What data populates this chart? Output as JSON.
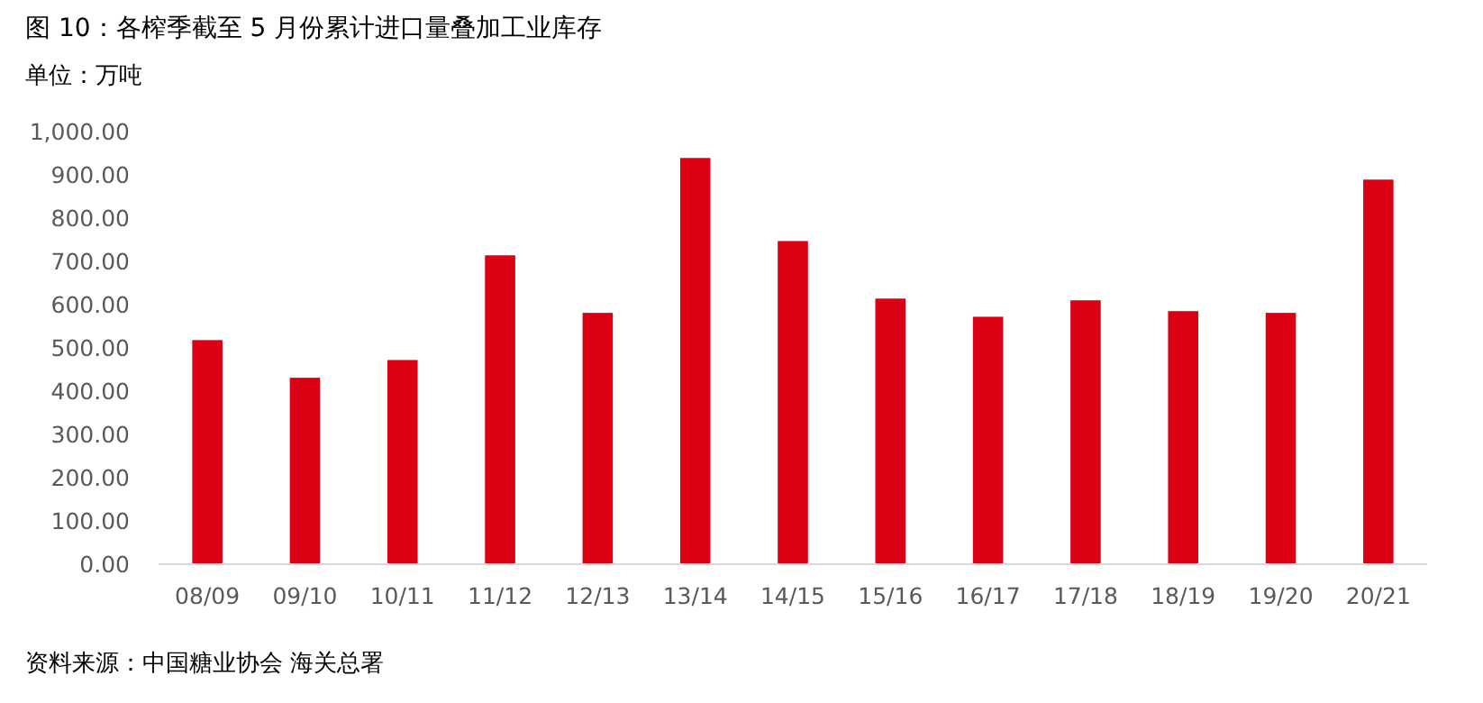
{
  "chart_data": {
    "type": "bar",
    "title": "图 10：各榨季截至 5 月份累计进口量叠加工业库存",
    "subtitle": "单位：万吨",
    "categories": [
      "08/09",
      "09/10",
      "10/11",
      "11/12",
      "12/13",
      "13/14",
      "14/15",
      "15/16",
      "16/17",
      "17/18",
      "18/19",
      "19/20",
      "20/21"
    ],
    "values": [
      518,
      431,
      472,
      714,
      581,
      939,
      747,
      614,
      572,
      610,
      585,
      581,
      889
    ],
    "color": "#dc0014",
    "ylim": [
      0,
      1000
    ],
    "yticks": [
      {
        "value": 0,
        "label": "0.00"
      },
      {
        "value": 100,
        "label": "100.00"
      },
      {
        "value": 200,
        "label": "200.00"
      },
      {
        "value": 300,
        "label": "300.00"
      },
      {
        "value": 400,
        "label": "400.00"
      },
      {
        "value": 500,
        "label": "500.00"
      },
      {
        "value": 600,
        "label": "600.00"
      },
      {
        "value": 700,
        "label": "700.00"
      },
      {
        "value": 800,
        "label": "800.00"
      },
      {
        "value": 900,
        "label": "900.00"
      },
      {
        "value": 1000,
        "label": "1,000.00"
      }
    ],
    "grid": false,
    "annotations": [
      "资料来源：中国糖业协会 海关总署"
    ]
  }
}
